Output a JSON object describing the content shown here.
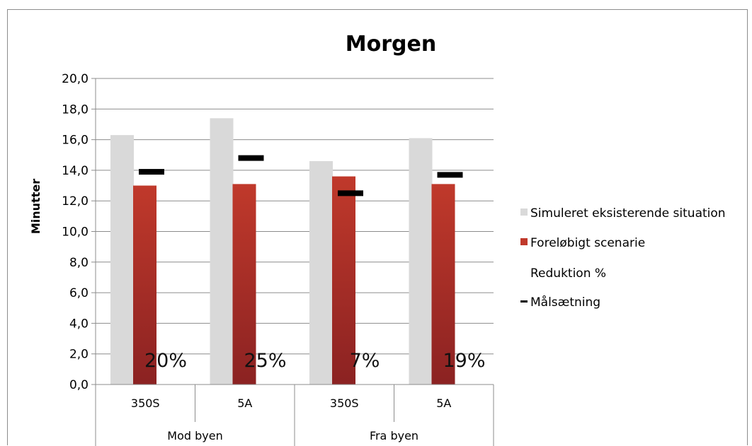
{
  "chart_data": {
    "type": "bar",
    "title": "Morgen",
    "ylabel": "Minutter",
    "xlabel": "",
    "ylim": [
      0,
      20
    ],
    "ytick_step": 2,
    "ytick_labels": [
      "0,0",
      "2,0",
      "4,0",
      "6,0",
      "8,0",
      "10,0",
      "12,0",
      "14,0",
      "16,0",
      "18,0",
      "20,0"
    ],
    "grid": true,
    "legend_position": "right",
    "categories": [
      "350S",
      "5A",
      "350S",
      "5A"
    ],
    "groups": [
      {
        "label": "Mod byen",
        "span": 2
      },
      {
        "label": "Fra byen",
        "span": 2
      }
    ],
    "series": [
      {
        "name": "Simuleret eksisterende situation",
        "kind": "bar",
        "color": "#d9d9d9",
        "values": [
          16.3,
          17.4,
          14.6,
          16.1
        ]
      },
      {
        "name": "Foreløbigt scenarie",
        "kind": "bar",
        "color": "#c0392b",
        "color_dark": "#8b2222",
        "values": [
          13.0,
          13.1,
          13.6,
          13.1
        ]
      },
      {
        "name": "Reduktion %",
        "kind": "label",
        "labels": [
          "20%",
          "25%",
          "7%",
          "19%"
        ]
      },
      {
        "name": "Målsætning",
        "kind": "marker",
        "color": "#000000",
        "values": [
          13.9,
          14.8,
          12.5,
          13.7
        ]
      }
    ]
  }
}
